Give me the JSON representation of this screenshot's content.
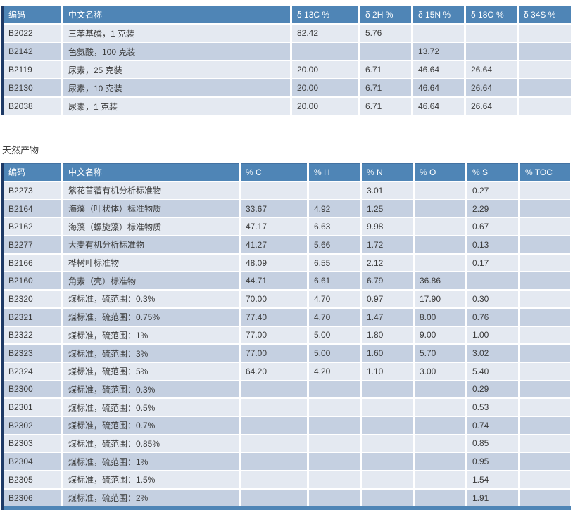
{
  "colors": {
    "header_bg": "#4f85b6",
    "row_light": "#e4e9f1",
    "row_dark": "#c5d0e1",
    "left_border": "#1e3a66",
    "header_text": "#ffffff",
    "body_text": "#3b3b3b"
  },
  "section_label": "天然产物",
  "isotope_table": {
    "columns": [
      "编码",
      "中文名称",
      "δ 13C %",
      "δ 2H %",
      "δ 15N %",
      "δ 18O %",
      "δ 34S %"
    ],
    "rows": [
      [
        "B2022",
        "三苯基磷，1 克装",
        "82.42",
        "5.76",
        "",
        "",
        ""
      ],
      [
        "B2142",
        "色氨酸，100 克装",
        "",
        "",
        "13.72",
        "",
        ""
      ],
      [
        "B2119",
        "尿素，25 克装",
        "20.00",
        "6.71",
        "46.64",
        "26.64",
        ""
      ],
      [
        "B2130",
        "尿素，10 克装",
        "20.00",
        "6.71",
        "46.64",
        "26.64",
        ""
      ],
      [
        "B2038",
        "尿素，1 克装",
        "20.00",
        "6.71",
        "46.64",
        "26.64",
        ""
      ]
    ]
  },
  "natural_table": {
    "columns": [
      "编码",
      "中文名称",
      "% C",
      "% H",
      "% N",
      "% O",
      "% S",
      "% TOC"
    ],
    "rows": [
      [
        "B2273",
        "紫花苜蓿有机分析标准物",
        "",
        "",
        "3.01",
        "",
        "0.27",
        ""
      ],
      [
        "B2164",
        "海藻（叶状体）标准物质",
        "33.67",
        "4.92",
        "1.25",
        "",
        "2.29",
        ""
      ],
      [
        "B2162",
        "海藻（螺旋藻）标准物质",
        "47.17",
        "6.63",
        "9.98",
        "",
        "0.67",
        ""
      ],
      [
        "B2277",
        "大麦有机分析标准物",
        "41.27",
        "5.66",
        "1.72",
        "",
        "0.13",
        ""
      ],
      [
        "B2166",
        "桦树叶标准物",
        "48.09",
        "6.55",
        "2.12",
        "",
        "0.17",
        ""
      ],
      [
        "B2160",
        "角素（壳）标准物",
        "44.71",
        "6.61",
        "6.79",
        "36.86",
        "",
        ""
      ],
      [
        "B2320",
        "煤标准，硫范围：0.3%",
        "70.00",
        "4.70",
        "0.97",
        "17.90",
        "0.30",
        ""
      ],
      [
        "B2321",
        "煤标准，硫范围：0.75%",
        "77.40",
        "4.70",
        "1.47",
        "8.00",
        "0.76",
        ""
      ],
      [
        "B2322",
        "煤标准，硫范围：1%",
        "77.00",
        "5.00",
        "1.80",
        "9.00",
        "1.00",
        ""
      ],
      [
        "B2323",
        "煤标准，硫范围：3%",
        "77.00",
        "5.00",
        "1.60",
        "5.70",
        "3.02",
        ""
      ],
      [
        "B2324",
        "煤标准，硫范围：5%",
        "64.20",
        "4.20",
        "1.10",
        "3.00",
        "5.40",
        ""
      ],
      [
        "B2300",
        "煤标准，硫范围：0.3%",
        "",
        "",
        "",
        "",
        "0.29",
        ""
      ],
      [
        "B2301",
        "煤标准，硫范围：0.5%",
        "",
        "",
        "",
        "",
        "0.53",
        ""
      ],
      [
        "B2302",
        "煤标准，硫范围：0.7%",
        "",
        "",
        "",
        "",
        "0.74",
        ""
      ],
      [
        "B2303",
        "煤标准，硫范围：0.85%",
        "",
        "",
        "",
        "",
        "0.85",
        ""
      ],
      [
        "B2304",
        "煤标准，硫范围：1%",
        "",
        "",
        "",
        "",
        "0.95",
        ""
      ],
      [
        "B2305",
        "煤标准，硫范围：1.5%",
        "",
        "",
        "",
        "",
        "1.54",
        ""
      ],
      [
        "B2306",
        "煤标准，硫范围：2%",
        "",
        "",
        "",
        "",
        "1.91",
        ""
      ]
    ]
  }
}
